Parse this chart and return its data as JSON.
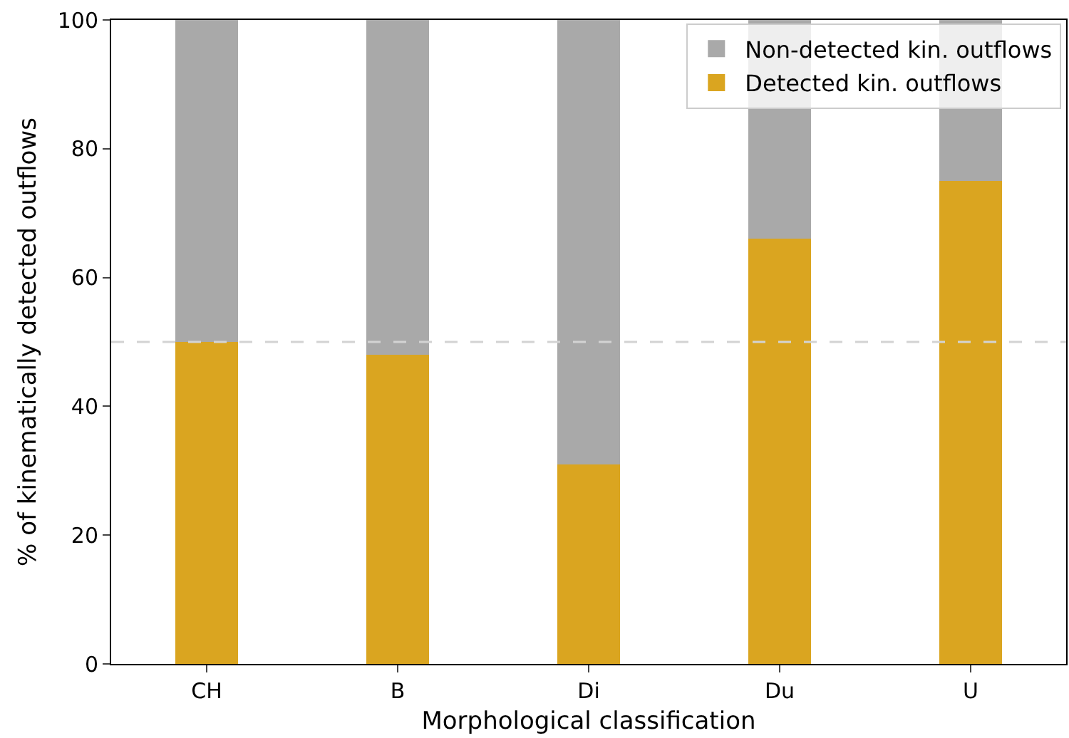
{
  "chart_data": {
    "type": "bar",
    "stacked": true,
    "xlabel": "Morphological classification",
    "ylabel": "% of kinematically detected outflows",
    "categories": [
      "CH",
      "B",
      "Di",
      "Du",
      "U"
    ],
    "ylim": [
      0,
      100
    ],
    "yticks": [
      0,
      20,
      40,
      60,
      80,
      100
    ],
    "series": [
      {
        "name": "Detected kin. outflows",
        "color": "#daa520",
        "values": [
          50,
          48,
          31,
          66,
          75
        ]
      },
      {
        "name": "Non-detected kin. outflows",
        "color": "#a9a9a9",
        "values": [
          50,
          52,
          69,
          34,
          25
        ]
      }
    ],
    "ref_lines": [
      {
        "axis": "y",
        "value": 50,
        "color": "#d3d3d3",
        "line_style": "dashed"
      }
    ],
    "legend": "top right",
    "grid": false
  }
}
